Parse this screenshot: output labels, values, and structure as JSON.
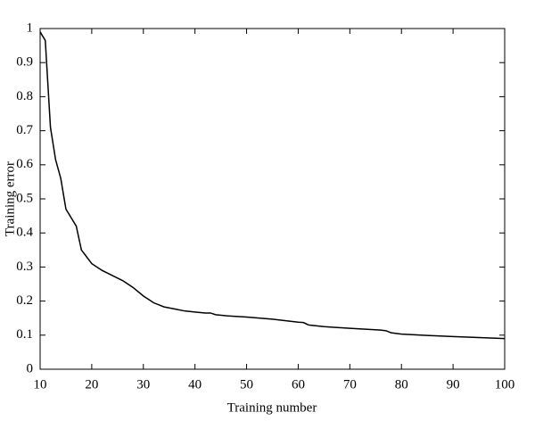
{
  "chart_data": {
    "type": "line",
    "xlabel": "Training number",
    "ylabel": "Training error",
    "x": [
      10,
      11,
      12,
      13,
      14,
      15,
      16,
      17,
      18,
      19,
      20,
      22,
      24,
      26,
      28,
      30,
      32,
      34,
      36,
      38,
      40,
      42,
      43,
      44,
      46,
      50,
      55,
      60,
      61,
      62,
      65,
      70,
      76,
      77,
      78,
      80,
      85,
      90,
      95,
      100
    ],
    "series": [
      {
        "color": "#000000",
        "values": [
          0.99,
          0.965,
          0.71,
          0.615,
          0.56,
          0.47,
          0.445,
          0.42,
          0.35,
          0.33,
          0.31,
          0.29,
          0.275,
          0.26,
          0.24,
          0.215,
          0.195,
          0.183,
          0.177,
          0.171,
          0.168,
          0.165,
          0.165,
          0.16,
          0.157,
          0.153,
          0.147,
          0.138,
          0.137,
          0.13,
          0.125,
          0.12,
          0.115,
          0.113,
          0.107,
          0.103,
          0.099,
          0.096,
          0.093,
          0.09
        ]
      }
    ],
    "xlim": [
      10,
      100
    ],
    "xticks": [
      10,
      20,
      30,
      40,
      50,
      60,
      70,
      80,
      90,
      100
    ],
    "ylim": [
      0,
      1
    ],
    "yticks": [
      0,
      0.1,
      0.2,
      0.3,
      0.4,
      0.5,
      0.6,
      0.7,
      0.8,
      0.9,
      1
    ],
    "grid": false
  }
}
